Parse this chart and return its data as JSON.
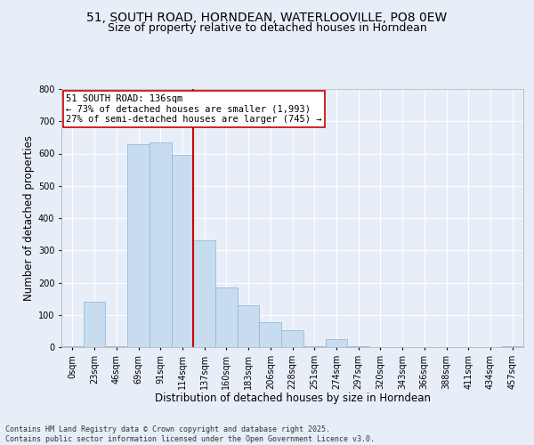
{
  "title_line1": "51, SOUTH ROAD, HORNDEAN, WATERLOOVILLE, PO8 0EW",
  "title_line2": "Size of property relative to detached houses in Horndean",
  "xlabel": "Distribution of detached houses by size in Horndean",
  "ylabel": "Number of detached properties",
  "bin_labels": [
    "0sqm",
    "23sqm",
    "46sqm",
    "69sqm",
    "91sqm",
    "114sqm",
    "137sqm",
    "160sqm",
    "183sqm",
    "206sqm",
    "228sqm",
    "251sqm",
    "274sqm",
    "297sqm",
    "320sqm",
    "343sqm",
    "366sqm",
    "388sqm",
    "411sqm",
    "434sqm",
    "457sqm"
  ],
  "bar_heights": [
    2,
    140,
    2,
    630,
    635,
    595,
    330,
    185,
    130,
    78,
    52,
    2,
    25,
    2,
    0,
    0,
    0,
    0,
    0,
    0,
    2
  ],
  "bar_color": "#c8dcf0",
  "bar_edge_color": "#8ab4d8",
  "vline_x": 6.0,
  "vline_color": "#cc0000",
  "annotation_text": "51 SOUTH ROAD: 136sqm\n← 73% of detached houses are smaller (1,993)\n27% of semi-detached houses are larger (745) →",
  "annotation_box_color": "#ffffff",
  "annotation_box_edge": "#cc0000",
  "ylim": [
    0,
    800
  ],
  "yticks": [
    0,
    100,
    200,
    300,
    400,
    500,
    600,
    700,
    800
  ],
  "footnote": "Contains HM Land Registry data © Crown copyright and database right 2025.\nContains public sector information licensed under the Open Government Licence v3.0.",
  "bg_color": "#e8eef8",
  "plot_bg": "#e8eef8",
  "grid_color": "#ffffff",
  "title_fontsize": 10,
  "subtitle_fontsize": 9,
  "tick_fontsize": 7,
  "label_fontsize": 8.5,
  "footnote_fontsize": 6,
  "annot_fontsize": 7.5
}
